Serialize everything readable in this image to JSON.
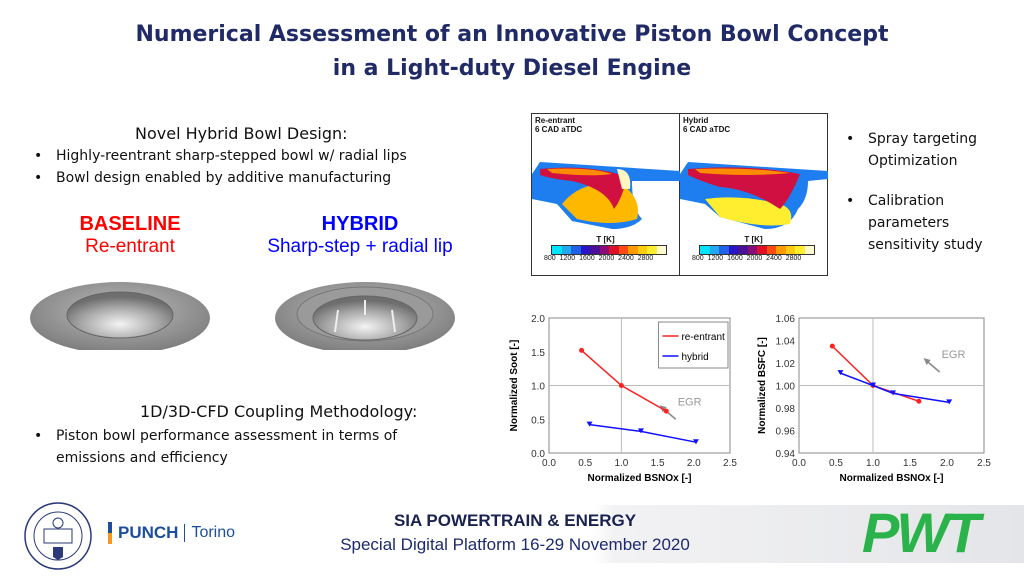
{
  "title": {
    "line1": "Numerical Assessment of an Innovative Piston Bowl Concept",
    "line2": "in a Light-duty Diesel Engine"
  },
  "left": {
    "design_heading": "Novel Hybrid Bowl Design:",
    "design_bullets": [
      "Highly-reentrant sharp-stepped bowl w/ radial lips",
      "Bowl design enabled by additive manufacturing"
    ],
    "baseline": {
      "label": "BASELINE",
      "sub": "Re-entrant",
      "color": "#ff0000"
    },
    "hybrid": {
      "label": "HYBRID",
      "sub": "Sharp-step + radial lip",
      "color": "#0000ff"
    },
    "coupling_heading": "1D/3D-CFD Coupling Methodology:",
    "coupling_bullets": [
      "Piston bowl performance assessment in terms of emissions and efficiency"
    ]
  },
  "cfd": {
    "panels": [
      {
        "name": "Re-entrant",
        "time": "6 CAD aTDC"
      },
      {
        "name": "Hybrid",
        "time": "6 CAD aTDC"
      }
    ],
    "colorbar_title": "T [K]",
    "colorbar_ticks": "800 1200 1600 2000 2400 2800",
    "colorbar_colors": [
      "#00e5ff",
      "#22a8f0",
      "#1e62e8",
      "#2a14c8",
      "#4a1098",
      "#8a0c78",
      "#e0102a",
      "#ff4a10",
      "#ff9a00",
      "#ffcc10",
      "#ffee30",
      "#fffbd0"
    ]
  },
  "right_bullets": [
    "Spray targeting Optimization",
    "Calibration parameters sensitivity study"
  ],
  "chart_data": [
    {
      "type": "line",
      "xlabel": "Normalized BSNOx [-]",
      "ylabel": "Normalized Soot [-]",
      "xlim": [
        0,
        2.5
      ],
      "ylim": [
        0,
        2.0
      ],
      "xticks": [
        "0.0",
        "0.5",
        "1.0",
        "1.5",
        "2.0",
        "2.5"
      ],
      "yticks": [
        "0.0",
        "0.5",
        "1.0",
        "1.5",
        "2.0"
      ],
      "reference_lines": {
        "x": 1.0,
        "y": 1.0
      },
      "legend": "top-right",
      "annotation": "EGR",
      "series": [
        {
          "name": "re-entrant",
          "color": "#ff2020",
          "marker": "circle",
          "x": [
            0.45,
            1.0,
            1.62
          ],
          "y": [
            1.52,
            1.0,
            0.62
          ]
        },
        {
          "name": "hybrid",
          "color": "#1010ff",
          "marker": "triangle-down",
          "x": [
            0.56,
            1.27,
            2.03
          ],
          "y": [
            0.42,
            0.32,
            0.16
          ]
        }
      ]
    },
    {
      "type": "line",
      "xlabel": "Normalized BSNOx [-]",
      "ylabel": "Normalized BSFC [-]",
      "xlim": [
        0,
        2.5
      ],
      "ylim": [
        0.94,
        1.06
      ],
      "xticks": [
        "0.0",
        "0.5",
        "1.0",
        "1.5",
        "2.0",
        "2.5"
      ],
      "yticks": [
        "0.94",
        "0.96",
        "0.98",
        "1.00",
        "1.02",
        "1.04",
        "1.06"
      ],
      "reference_lines": {
        "x": 1.0,
        "y": 1.0
      },
      "annotation": "EGR",
      "series": [
        {
          "color": "#ff2020",
          "marker": "circle",
          "x": [
            0.45,
            1.0,
            1.62
          ],
          "y": [
            1.035,
            1.0,
            0.986
          ]
        },
        {
          "color": "#1010ff",
          "marker": "triangle-down",
          "x": [
            0.56,
            1.0,
            1.27,
            2.03
          ],
          "y": [
            1.011,
            1.0,
            0.993,
            0.985
          ]
        }
      ]
    }
  ],
  "footer": {
    "line1": "SIA POWERTRAIN & ENERGY",
    "line2": "Special Digital Platform 16-29 November 2020",
    "polito_logo": "POLITECNICO DI TORINO 1859 1906",
    "punch_logo": "PUNCH",
    "punch_sub": "Torino",
    "pwt_logo": "PWT",
    "pwt_color": "#2ab34a"
  }
}
